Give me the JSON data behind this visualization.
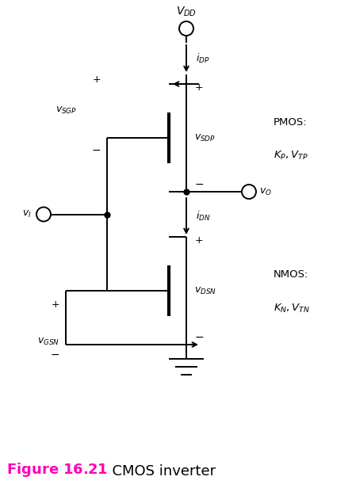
{
  "title_color": "#FF00BB",
  "title_fontsize": 13,
  "bg_color": "#ffffff",
  "figsize": [
    4.44,
    6.16
  ],
  "dpi": 100,
  "label_color": "#000000",
  "vdd_label": "V_{DD}",
  "idp_label": "i_{DP}",
  "vsgp_label": "v_{SGP}",
  "vsdp_label": "v_{SDP}",
  "vo_label": "v_{O}",
  "vi_label": "v_{I}",
  "idn_label": "i_{DN}",
  "vdsn_label": "v_{DSN}",
  "vgsn_label": "v_{GSN}",
  "pmos_label1": "PMOS:",
  "pmos_label2": "K_P,V_{TP}",
  "nmos_label1": "NMOS:",
  "nmos_label2": "K_N, V_{TN}"
}
